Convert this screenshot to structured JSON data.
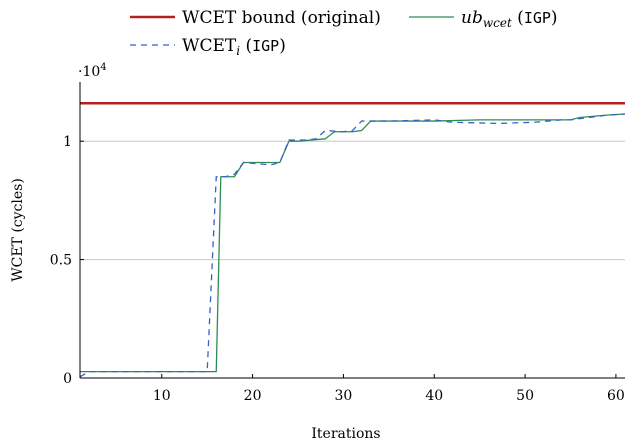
{
  "chart_data": {
    "type": "line",
    "title": "",
    "xlabel": "Iterations",
    "ylabel": "WCET (cycles)",
    "y_scale_label": "·10",
    "y_scale_exponent": "4",
    "xlim": [
      1,
      61
    ],
    "ylim": [
      0,
      12500
    ],
    "x_ticks": [
      10,
      20,
      30,
      40,
      50,
      60
    ],
    "x_tick_labels": [
      "10",
      "20",
      "30",
      "40",
      "50",
      "60"
    ],
    "y_ticks": [
      0,
      5000,
      10000
    ],
    "y_tick_labels": [
      "0",
      "0.5",
      "1"
    ],
    "grid": "horizontal",
    "legend_position": "top",
    "legend": [
      {
        "id": "bound",
        "parts": [
          {
            "text": "WCET bound (original)",
            "style": "normal"
          }
        ]
      },
      {
        "id": "ub",
        "parts": [
          {
            "text": "ub",
            "style": "italic"
          },
          {
            "text": "wcet",
            "style": "italic-sub"
          },
          {
            "text": " (",
            "style": "normal"
          },
          {
            "text": "IGP",
            "style": "mono"
          },
          {
            "text": ")",
            "style": "normal"
          }
        ]
      },
      {
        "id": "wcet_i",
        "parts": [
          {
            "text": "WCET",
            "style": "normal"
          },
          {
            "text": "i",
            "style": "italic-sub"
          },
          {
            "text": " (",
            "style": "normal"
          },
          {
            "text": "IGP",
            "style": "mono"
          },
          {
            "text": ")",
            "style": "normal"
          }
        ]
      }
    ],
    "series": [
      {
        "id": "bound",
        "color": "#b22222",
        "dash": "solid",
        "width": 2.5,
        "x": [
          1,
          61
        ],
        "y": [
          11600,
          11600
        ]
      },
      {
        "id": "ub",
        "color": "#2e8b57",
        "dash": "solid",
        "width": 1.3,
        "x": [
          1,
          16,
          16.5,
          18,
          19,
          23,
          24,
          25,
          28,
          29,
          31,
          32,
          33,
          34,
          40,
          45,
          50,
          55,
          56,
          59,
          61
        ],
        "y": [
          270,
          270,
          8500,
          8500,
          9100,
          9100,
          10000,
          10000,
          10100,
          10400,
          10400,
          10450,
          10850,
          10850,
          10850,
          10900,
          10900,
          10900,
          11000,
          11100,
          11150
        ]
      },
      {
        "id": "wcet_i",
        "color": "#3a5fcd",
        "dash": "6,5",
        "width": 1.3,
        "x": [
          1,
          2,
          15,
          16,
          17,
          18,
          19,
          22,
          23,
          24,
          26,
          27,
          28,
          30,
          31,
          32,
          33,
          35,
          40,
          42,
          47,
          51,
          54,
          55,
          57,
          59,
          61
        ],
        "y": [
          50,
          270,
          270,
          8500,
          8500,
          8600,
          9100,
          9000,
          9100,
          10050,
          10050,
          10100,
          10450,
          10400,
          10450,
          10850,
          10850,
          10850,
          10900,
          10800,
          10750,
          10800,
          10900,
          10900,
          11000,
          11100,
          11150
        ]
      }
    ]
  }
}
